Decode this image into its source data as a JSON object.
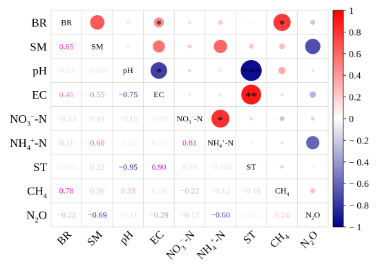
{
  "chart_data": {
    "type": "heatmap",
    "title": "",
    "variables": [
      {
        "plain": "BR",
        "base": "BR",
        "sup": "",
        "sub": "",
        "tail": ""
      },
      {
        "plain": "SM",
        "base": "SM",
        "sup": "",
        "sub": "",
        "tail": ""
      },
      {
        "plain": "pH",
        "base": "pH",
        "sup": "",
        "sub": "",
        "tail": ""
      },
      {
        "plain": "EC",
        "base": "EC",
        "sup": "",
        "sub": "",
        "tail": ""
      },
      {
        "plain": "NO3−-N",
        "base": "NO",
        "sub": "3",
        "sup": "−",
        "tail": "-N"
      },
      {
        "plain": "NH4+-N",
        "base": "NH",
        "sub": "4",
        "sup": "+",
        "tail": "-N"
      },
      {
        "plain": "ST",
        "base": "ST",
        "sup": "",
        "sub": "",
        "tail": ""
      },
      {
        "plain": "CH4",
        "base": "CH",
        "sub": "4",
        "sup": "",
        "tail": ""
      },
      {
        "plain": "N2O",
        "base": "N",
        "sub": "2",
        "sup": "",
        "tail": "O"
      }
    ],
    "matrix": [
      [
        1,
        0.65,
        0.13,
        0.45,
        -0.13,
        0.21,
        0.063,
        0.78,
        -0.22
      ],
      [
        0.65,
        1,
        -0.061,
        0.55,
        0.19,
        0.6,
        0.22,
        0.26,
        -0.69
      ],
      [
        0.13,
        -0.061,
        1,
        -0.75,
        -0.15,
        0.12,
        -0.95,
        0.33,
        -0.11
      ],
      [
        0.45,
        0.55,
        -0.75,
        1,
        0.099,
        0.12,
        0.9,
        0.14,
        -0.29
      ],
      [
        -0.13,
        0.19,
        -0.15,
        0.099,
        1,
        0.81,
        0.16,
        -0.22,
        -0.17
      ],
      [
        0.21,
        0.6,
        0.12,
        0.12,
        0.81,
        1,
        -0.043,
        -0.12,
        -0.6
      ],
      [
        0.063,
        0.22,
        -0.95,
        0.9,
        0.16,
        -0.043,
        1,
        -0.16,
        0.052
      ],
      [
        0.78,
        0.26,
        0.33,
        0.14,
        -0.22,
        -0.12,
        -0.16,
        1,
        0.24
      ],
      [
        -0.22,
        -0.69,
        -0.11,
        -0.29,
        -0.17,
        -0.6,
        0.052,
        0.24,
        1
      ]
    ],
    "value_labels": [
      [
        null,
        null,
        null,
        null,
        null,
        null,
        null,
        null,
        null
      ],
      [
        "0.65",
        null,
        null,
        null,
        null,
        null,
        null,
        null,
        null
      ],
      [
        "0.13",
        "−0.061",
        null,
        null,
        null,
        null,
        null,
        null,
        null
      ],
      [
        "0.45",
        "0.55",
        "−0.75",
        null,
        null,
        null,
        null,
        null,
        null
      ],
      [
        "−0.13",
        "0.19",
        "−0.15",
        "0.099",
        null,
        null,
        null,
        null,
        null
      ],
      [
        "0.21",
        "0.60",
        "0.12",
        "0.12",
        "0.81",
        null,
        null,
        null,
        null
      ],
      [
        "0.063",
        "0.22",
        "−0.95",
        "0.90",
        "0.16",
        "−0.043",
        null,
        null,
        null
      ],
      [
        "0.78",
        "0.26",
        "0.33",
        "0.14",
        "−0.22",
        "−0.12",
        "−0.16",
        null,
        null
      ],
      [
        "−0.22",
        "−0.69",
        "−0.11",
        "−0.29",
        "−0.17",
        "−0.60",
        "0.052",
        "0.24",
        null
      ]
    ],
    "significance": [
      {
        "row": 0,
        "col": 3,
        "mark": "*"
      },
      {
        "row": 0,
        "col": 7,
        "mark": "*"
      },
      {
        "row": 2,
        "col": 3,
        "mark": "*"
      },
      {
        "row": 2,
        "col": 6,
        "mark": "***"
      },
      {
        "row": 3,
        "col": 6,
        "mark": "**"
      },
      {
        "row": 4,
        "col": 5,
        "mark": "*"
      }
    ],
    "colorbar": {
      "min": -1,
      "max": 1,
      "ticks": [
        1,
        0.8,
        0.6,
        0.4,
        0.2,
        0,
        -0.2,
        -0.4,
        -0.6,
        -0.8,
        -1
      ],
      "tick_labels": [
        "1",
        "0.8",
        "0.6",
        "0.4",
        "0.2",
        "0",
        "− 0.2",
        "− 0.4",
        "− 0.6",
        "− 0.8",
        "− 1"
      ],
      "colors": {
        "negative": "#00008B",
        "zero": "#FFFFFF",
        "positive": "#FF0000"
      }
    },
    "label_colors": {
      "negative": "#1A1A8C",
      "positive": "#E31CC5"
    },
    "grid": true,
    "legend": "right"
  }
}
